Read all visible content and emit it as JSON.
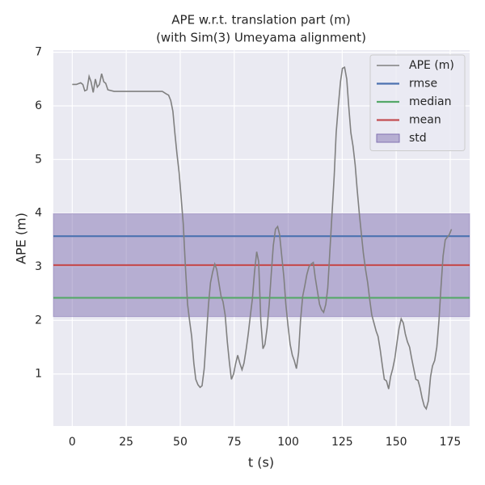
{
  "chart_data": {
    "type": "line",
    "title": [
      "APE w.r.t. translation part (m)",
      "(with Sim(3) Umeyama alignment)"
    ],
    "xlabel": "t (s)",
    "ylabel": "APE (m)",
    "xlim": [
      -8.75,
      184
    ],
    "ylim": [
      0.03,
      7.04
    ],
    "xticks": [
      0,
      25,
      50,
      75,
      100,
      125,
      150,
      175
    ],
    "yticks": [
      1,
      2,
      3,
      4,
      5,
      6,
      7
    ],
    "grid": true,
    "legend": "upper right",
    "x": [
      0,
      1.9,
      3.9,
      4.9,
      5.8,
      6.8,
      7.8,
      8.7,
      9.7,
      10.7,
      11.6,
      12.6,
      13.6,
      14.6,
      15.5,
      16.5,
      19.4,
      41.7,
      43.7,
      44.6,
      45.6,
      46.6,
      47.5,
      48.5,
      49.5,
      50.4,
      51.4,
      52.4,
      53.4,
      54.3,
      55.3,
      56.3,
      57.2,
      58.2,
      59.2,
      60.1,
      61.1,
      62.1,
      63.1,
      64,
      65,
      66,
      66.9,
      67.9,
      68.9,
      69.8,
      70.8,
      71.8,
      72.8,
      73.7,
      74.7,
      75.7,
      76.6,
      77.6,
      78.6,
      79.5,
      80.5,
      81.5,
      82.5,
      83.4,
      84.4,
      85.4,
      86.3,
      87.3,
      88.3,
      89.2,
      90.2,
      91.2,
      92.2,
      93.1,
      94.1,
      95.1,
      96,
      97,
      98,
      98.9,
      99.9,
      100.9,
      101.9,
      102.8,
      103.8,
      104.8,
      105.7,
      106.7,
      107.7,
      108.6,
      109.6,
      110.6,
      111.6,
      112.5,
      113.5,
      114.5,
      115.4,
      116.4,
      117.4,
      118.3,
      119.3,
      120.3,
      121.3,
      122.2,
      123.2,
      124.2,
      125.1,
      126.1,
      127.1,
      128,
      129,
      130,
      131,
      131.9,
      132.9,
      133.9,
      134.8,
      135.8,
      136.8,
      137.7,
      138.7,
      139.7,
      140.7,
      141.6,
      142.6,
      143.6,
      144.5,
      145.5,
      146.5,
      147.4,
      148.4,
      149.4,
      150.4,
      151.3,
      152.3,
      153.3,
      154.2,
      155.2,
      156.2,
      157.1,
      158.1,
      159.1,
      160.1,
      161,
      162,
      163,
      163.9,
      164.9,
      165.9,
      166.8,
      167.8,
      168.8,
      169.8,
      170.7,
      171.7,
      172.7,
      173.6,
      174.6,
      175.6
    ],
    "series": [
      {
        "name": "APE (m)",
        "color": "#808080",
        "values": [
          6.4,
          6.4,
          6.43,
          6.4,
          6.28,
          6.3,
          6.55,
          6.45,
          6.25,
          6.5,
          6.35,
          6.4,
          6.6,
          6.45,
          6.42,
          6.3,
          6.27,
          6.27,
          6.22,
          6.2,
          6.1,
          5.9,
          5.5,
          5.1,
          4.75,
          4.3,
          3.8,
          3.0,
          2.3,
          2.0,
          1.7,
          1.2,
          0.9,
          0.8,
          0.75,
          0.78,
          1.1,
          1.7,
          2.3,
          2.7,
          2.9,
          3.05,
          2.95,
          2.7,
          2.45,
          2.35,
          2.1,
          1.6,
          1.2,
          0.9,
          1.0,
          1.2,
          1.35,
          1.2,
          1.08,
          1.2,
          1.45,
          1.75,
          2.1,
          2.4,
          2.9,
          3.28,
          3.1,
          2.0,
          1.47,
          1.55,
          1.85,
          2.3,
          2.9,
          3.4,
          3.7,
          3.75,
          3.6,
          3.2,
          2.8,
          2.3,
          1.9,
          1.55,
          1.35,
          1.25,
          1.1,
          1.4,
          2.0,
          2.45,
          2.65,
          2.85,
          3.0,
          3.05,
          3.08,
          2.8,
          2.55,
          2.3,
          2.2,
          2.15,
          2.3,
          2.6,
          3.3,
          4.0,
          4.7,
          5.5,
          6.0,
          6.45,
          6.7,
          6.72,
          6.5,
          6.0,
          5.5,
          5.25,
          4.9,
          4.45,
          4.0,
          3.6,
          3.25,
          2.95,
          2.7,
          2.4,
          2.1,
          1.95,
          1.8,
          1.7,
          1.45,
          1.15,
          0.9,
          0.87,
          0.72,
          0.95,
          1.1,
          1.3,
          1.6,
          1.85,
          2.03,
          1.95,
          1.75,
          1.6,
          1.5,
          1.3,
          1.1,
          0.9,
          0.88,
          0.75,
          0.55,
          0.4,
          0.35,
          0.5,
          0.95,
          1.15,
          1.25,
          1.5,
          2.0,
          2.6,
          3.2,
          3.5,
          3.55,
          3.6,
          3.7
        ]
      }
    ],
    "hlines": [
      {
        "name": "rmse",
        "color": "#4c72b0",
        "value": 3.57
      },
      {
        "name": "median",
        "color": "#55a868",
        "value": 2.42
      },
      {
        "name": "mean",
        "color": "#c44e52",
        "value": 3.03
      }
    ],
    "bands": [
      {
        "name": "std",
        "color": "#8172b2",
        "range": [
          2.07,
          3.99
        ]
      }
    ]
  }
}
